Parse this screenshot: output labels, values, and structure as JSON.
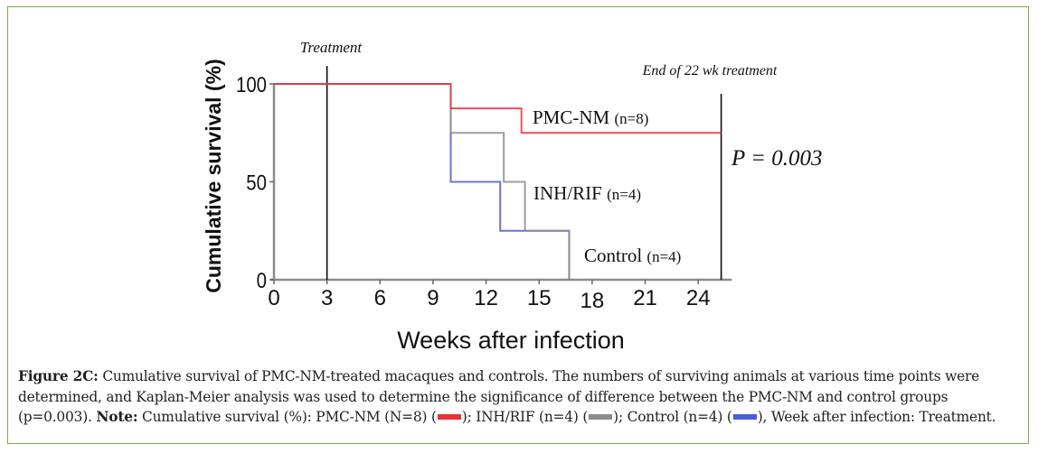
{
  "chart_data": {
    "type": "line",
    "subtype": "kaplan-meier step",
    "title": "",
    "xlabel": "Weeks after infection",
    "ylabel": "Cumulative survival (%)",
    "xlim": [
      0,
      26
    ],
    "ylim": [
      0,
      100
    ],
    "xticks": [
      0,
      3,
      6,
      9,
      12,
      15,
      18,
      21,
      24
    ],
    "yticks": [
      0,
      50,
      100
    ],
    "grid": false,
    "series": [
      {
        "name": "PMC-NM",
        "label": "PMC-NM",
        "n_label": "(n=8)",
        "color": "#e8323c",
        "steps": [
          [
            0,
            100
          ],
          [
            10,
            87.5
          ],
          [
            14,
            75
          ],
          [
            25.3,
            75
          ]
        ]
      },
      {
        "name": "INH/RIF",
        "label": "INH/RIF",
        "n_label": "(n=4)",
        "color": "#8c8c8c",
        "steps": [
          [
            0,
            100
          ],
          [
            10,
            75
          ],
          [
            13,
            50
          ],
          [
            14.2,
            25
          ],
          [
            16.7,
            0
          ]
        ]
      },
      {
        "name": "Control",
        "label": "Control",
        "n_label": "(n=4)",
        "color": "#4f5bd5",
        "steps": [
          [
            0,
            100
          ],
          [
            10,
            50
          ],
          [
            12.8,
            25
          ],
          [
            16.7,
            0
          ]
        ]
      }
    ],
    "annotations": [
      {
        "text": "Treatment",
        "x": 3,
        "type": "vline"
      },
      {
        "text": "End of 22 wk treatment",
        "x": 25.3,
        "type": "vline"
      },
      {
        "text": "P = 0.003",
        "type": "stat"
      }
    ]
  },
  "caption": {
    "figure_label": "Figure 2C:",
    "text1": " Cumulative survival of PMC-NM-treated macaques and controls. The numbers of surviving animals at various time points were determined, and Kaplan-Meier analysis was used to determine the significance of difference between the PMC-NM and control groups (p=0.003). ",
    "note_label": "Note:",
    "text2": " Cumulative survival (%): PMC-NM (N=8) (",
    "text3": "); INH/RIF (n=4) (",
    "text4": "); Control (n=4) (",
    "text5": "), Week after infection: Treatment."
  },
  "colors": {
    "frame": "#70ad47",
    "pmc": "#e8323c",
    "inh": "#8c8c8c",
    "control": "#4f5bd5"
  }
}
